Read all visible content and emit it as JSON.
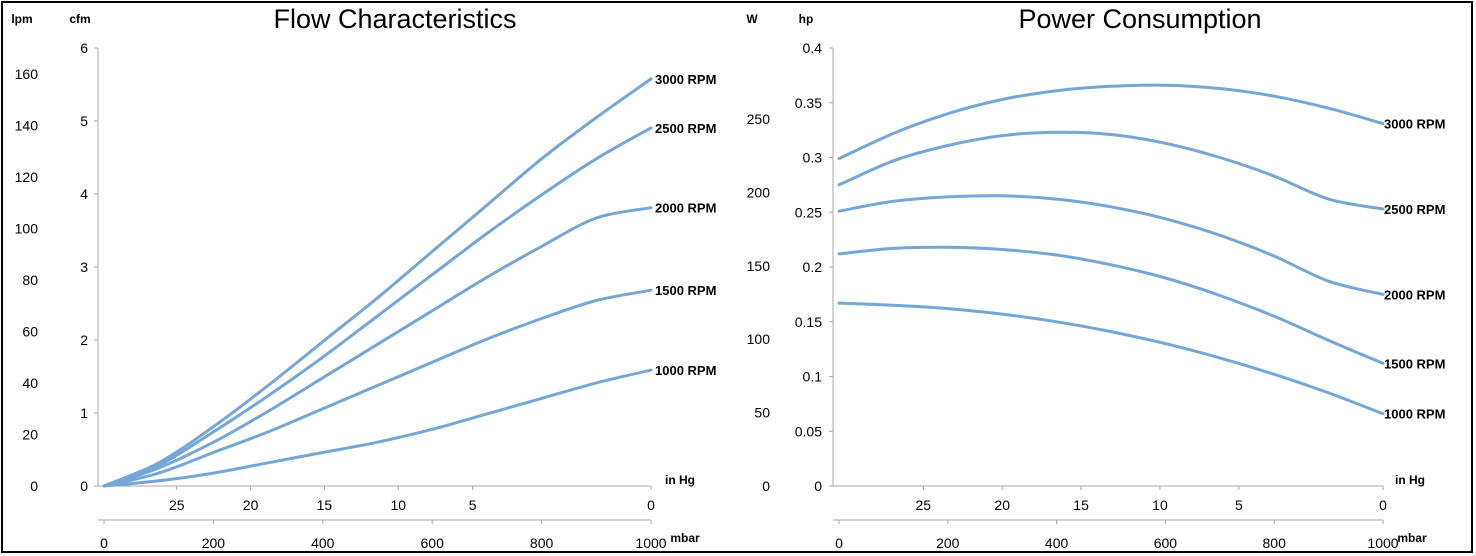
{
  "chart_data": [
    {
      "type": "line",
      "title": "Flow Characteristics",
      "left_axis_primary": {
        "unit": "lpm",
        "ticks": [
          0,
          20,
          40,
          60,
          80,
          100,
          120,
          140,
          160
        ],
        "range": [
          0,
          170
        ]
      },
      "left_axis_secondary": {
        "unit": "cfm",
        "ticks": [
          0,
          1,
          2,
          3,
          4,
          5,
          6
        ],
        "range": [
          0,
          6
        ]
      },
      "bottom_axis_primary": {
        "unit": "in Hg",
        "ticks": [
          25,
          20,
          15,
          10,
          5,
          0
        ]
      },
      "bottom_axis_secondary": {
        "unit": "mbar",
        "ticks": [
          0,
          200,
          400,
          600,
          800,
          1000
        ],
        "range": [
          0,
          1000
        ]
      },
      "x": [
        0,
        100,
        200,
        300,
        400,
        500,
        600,
        700,
        800,
        900,
        1000
      ],
      "series": [
        {
          "name": "3000 RPM",
          "values": [
            0,
            9,
            23,
            39,
            56,
            73,
            91,
            109,
            127,
            143,
            158
          ]
        },
        {
          "name": "2500 RPM",
          "values": [
            0,
            8,
            21,
            35,
            50,
            66,
            82,
            98,
            113,
            127,
            139
          ]
        },
        {
          "name": "2000 RPM",
          "values": [
            0,
            7,
            17,
            29,
            42,
            55,
            68,
            81,
            93,
            104,
            108
          ]
        },
        {
          "name": "1500 RPM",
          "values": [
            0,
            5,
            13,
            21,
            30,
            39,
            48,
            57,
            65,
            72,
            76
          ]
        },
        {
          "name": "1000 RPM",
          "values": [
            0,
            2,
            5,
            9,
            13,
            17,
            22,
            28,
            34,
            40,
            45
          ]
        }
      ]
    },
    {
      "type": "line",
      "title": "Power Consumption",
      "left_axis_primary": {
        "unit": "W",
        "ticks": [
          0,
          50,
          100,
          150,
          200,
          250
        ],
        "range": [
          0,
          298.3
        ]
      },
      "left_axis_secondary": {
        "unit": "hp",
        "ticks": [
          0,
          0.05,
          0.1,
          0.15,
          0.2,
          0.25,
          0.3,
          0.35,
          0.4
        ],
        "range": [
          0,
          0.4
        ]
      },
      "bottom_axis_primary": {
        "unit": "in Hg",
        "ticks": [
          25,
          20,
          15,
          10,
          5,
          0
        ]
      },
      "bottom_axis_secondary": {
        "unit": "mbar",
        "ticks": [
          0,
          200,
          400,
          600,
          800,
          1000
        ],
        "range": [
          0,
          1000
        ]
      },
      "x": [
        0,
        100,
        200,
        300,
        400,
        500,
        600,
        700,
        800,
        900,
        1000
      ],
      "series": [
        {
          "name": "3000 RPM",
          "values": [
            0.299,
            0.322,
            0.34,
            0.353,
            0.361,
            0.365,
            0.366,
            0.363,
            0.356,
            0.345,
            0.331
          ]
        },
        {
          "name": "2500 RPM",
          "values": [
            0.275,
            0.297,
            0.311,
            0.32,
            0.323,
            0.321,
            0.313,
            0.3,
            0.283,
            0.262,
            0.253
          ]
        },
        {
          "name": "2000 RPM",
          "values": [
            0.251,
            0.26,
            0.264,
            0.265,
            0.262,
            0.255,
            0.244,
            0.229,
            0.21,
            0.187,
            0.175
          ]
        },
        {
          "name": "1500 RPM",
          "values": [
            0.212,
            0.217,
            0.218,
            0.216,
            0.211,
            0.202,
            0.19,
            0.174,
            0.155,
            0.133,
            0.112
          ]
        },
        {
          "name": "1000 RPM",
          "values": [
            0.167,
            0.165,
            0.162,
            0.157,
            0.15,
            0.141,
            0.13,
            0.117,
            0.102,
            0.085,
            0.066
          ]
        }
      ]
    }
  ]
}
